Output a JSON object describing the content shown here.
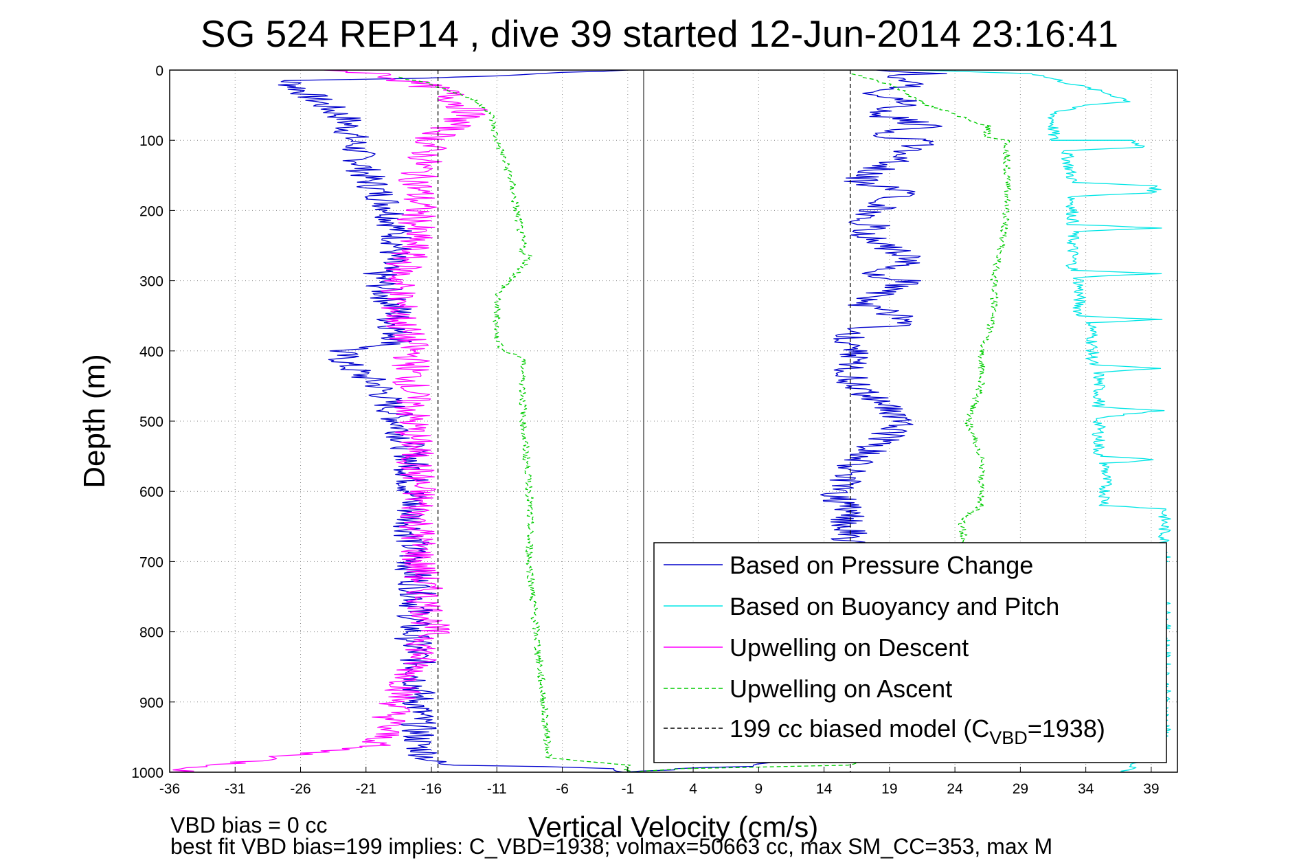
{
  "chart_data": {
    "type": "line",
    "title": "SG 524   REP14  , dive 39 started 12-Jun-2014 23:16:41",
    "xlabel": "Vertical Velocity (cm/s)",
    "ylabel": "Depth (m)",
    "xlim": [
      -36,
      41
    ],
    "ylim": [
      0,
      1000
    ],
    "y_reversed": true,
    "grid": true,
    "legend_position": "bottom-right",
    "x_ticks": [
      "-36",
      "-31",
      "-26",
      "-21",
      "-16",
      "-11",
      "-6",
      "-1",
      "4",
      "9",
      "14",
      "19",
      "24",
      "29",
      "34",
      "39"
    ],
    "y_ticks": [
      "0",
      "100",
      "200",
      "300",
      "400",
      "500",
      "600",
      "700",
      "800",
      "900",
      "1000"
    ],
    "series": [
      {
        "name": "Based on Pressure Change",
        "color": "#0000cc",
        "style": "solid",
        "noise": 1.4,
        "x": [
          -1,
          -13,
          -27,
          -25,
          -22.5,
          -22,
          -21,
          -19,
          -18.5,
          -20,
          -19.5,
          -18.5,
          -19,
          -18.5,
          -18.5,
          -23,
          -22.5,
          -20,
          -18.5,
          -17.5,
          -17.5,
          -17.5,
          -17.5,
          -17,
          -17.5,
          -17,
          -17,
          -17,
          -16,
          -15,
          -7,
          -1,
          -1,
          9,
          15,
          16,
          15,
          16.5,
          20,
          16,
          16,
          16,
          21,
          16.5,
          21,
          16.5,
          21,
          16.5,
          20,
          16.5,
          20,
          16.5,
          22,
          17.5,
          22,
          17.5,
          21,
          17.5,
          22,
          18,
          22,
          18
        ],
        "y": [
          0,
          10,
          15,
          40,
          70,
          100,
          150,
          200,
          250,
          290,
          320,
          345,
          355,
          380,
          390,
          400,
          420,
          450,
          500,
          550,
          600,
          650,
          700,
          750,
          800,
          850,
          900,
          960,
          985,
          990,
          992,
          995,
          1000,
          990,
          920,
          650,
          600,
          560,
          500,
          440,
          400,
          370,
          360,
          330,
          300,
          290,
          270,
          230,
          225,
          220,
          170,
          160,
          100,
          95,
          80,
          60,
          50,
          30,
          20,
          10,
          5,
          0
        ]
      },
      {
        "name": "Based on Buoyancy and Pitch",
        "color": "#00e5e5",
        "style": "solid",
        "noise": 0.5,
        "x": [
          21,
          30,
          36,
          37.5,
          34,
          31.5,
          31.5,
          37.5,
          38.5,
          32.5,
          33,
          39.5,
          39,
          33,
          33,
          39.5,
          33,
          33,
          39.5,
          33.5,
          33.5,
          39.5,
          34.5,
          34.5,
          39.5,
          35,
          35,
          39.5,
          35,
          35,
          39.5,
          35.5,
          35.5,
          40,
          40,
          35.5,
          35.5,
          40,
          40,
          37
        ],
        "y": [
          0,
          5,
          35,
          45,
          50,
          60,
          100,
          100,
          110,
          115,
          160,
          165,
          175,
          180,
          220,
          225,
          230,
          285,
          290,
          295,
          350,
          355,
          360,
          420,
          425,
          430,
          480,
          485,
          495,
          550,
          555,
          560,
          620,
          625,
          700,
          705,
          750,
          755,
          950,
          1000
        ]
      },
      {
        "name": "Upwelling on Descent",
        "color": "#ff00ff",
        "style": "solid",
        "noise": 1.5,
        "x": [
          -24,
          -20,
          -18,
          -15,
          -13,
          -16,
          -17,
          -17,
          -17.5,
          -18.5,
          -18.5,
          -17.5,
          -17.5,
          -17,
          -17,
          -16,
          -20,
          -36
        ],
        "y": [
          0,
          5,
          15,
          30,
          60,
          100,
          150,
          200,
          250,
          300,
          350,
          400,
          500,
          600,
          700,
          800,
          960,
          1000
        ]
      },
      {
        "name": "Upwelling on Ascent",
        "color": "#00cc00",
        "style": "dashed",
        "noise": 0.3,
        "x": [
          -18.5,
          -16,
          -13,
          -11.5,
          -11,
          -10,
          -9.5,
          -9,
          -9,
          -8.5,
          -9,
          -11,
          -11,
          -10.5,
          -9,
          -9,
          -8.5,
          -8.5,
          -8,
          -7,
          -1,
          -1,
          3,
          16,
          22,
          24,
          25,
          24.5,
          26,
          26,
          25,
          26,
          26,
          27,
          27,
          28,
          28,
          26.5,
          26.5,
          22,
          19,
          16
        ],
        "y": [
          10,
          20,
          40,
          60,
          100,
          150,
          200,
          250,
          260,
          265,
          280,
          320,
          380,
          400,
          410,
          500,
          600,
          700,
          800,
          980,
          990,
          1000,
          995,
          990,
          900,
          800,
          700,
          640,
          620,
          550,
          500,
          450,
          400,
          350,
          300,
          200,
          100,
          95,
          80,
          50,
          20,
          5
        ]
      },
      {
        "name": "199 cc biased model (C",
        "name_sub": "VBD",
        "name_tail": "=1938)",
        "color": "#000000",
        "style": "dashed",
        "x": [
          -15.5,
          -15.5
        ],
        "y": [
          0,
          1000
        ],
        "x2": [
          16,
          16
        ],
        "y2": [
          0,
          1000
        ]
      }
    ],
    "annotations": [
      "VBD bias = 0 cc",
      "best fit VBD bias=199 implies: C_VBD=1938; volmax=50663 cc, max SM_CC=353, max M"
    ]
  }
}
